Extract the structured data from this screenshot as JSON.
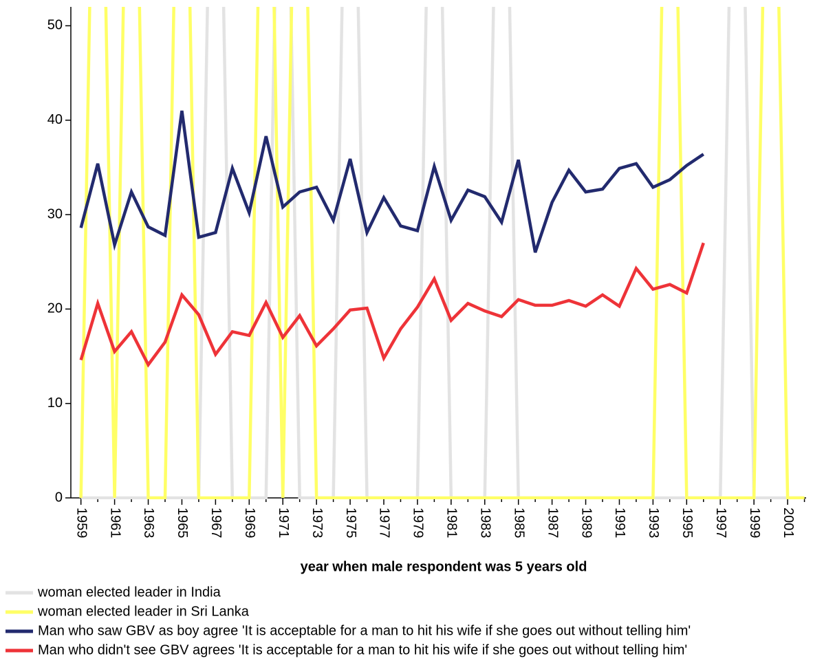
{
  "chart_data": {
    "type": "line",
    "x": [
      1959,
      1960,
      1961,
      1962,
      1963,
      1964,
      1965,
      1966,
      1967,
      1968,
      1969,
      1970,
      1971,
      1972,
      1973,
      1974,
      1975,
      1976,
      1977,
      1978,
      1979,
      1980,
      1981,
      1982,
      1983,
      1984,
      1985,
      1986,
      1987,
      1988,
      1989,
      1990,
      1991,
      1992,
      1993,
      1994,
      1995,
      1996,
      1997,
      1998,
      1999,
      2000,
      2001,
      2002
    ],
    "xlabel": "year when male respondent was 5 years old",
    "xlim": [
      1958.4,
      2002.1
    ],
    "xticks": [
      1959,
      1961,
      1963,
      1965,
      1967,
      1969,
      1971,
      1973,
      1975,
      1977,
      1979,
      1981,
      1983,
      1985,
      1987,
      1989,
      1991,
      1993,
      1995,
      1997,
      1999,
      2001
    ],
    "xminorticks": [
      1960,
      1962,
      1964,
      1966,
      1968,
      1970,
      1972,
      1974,
      1976,
      1978,
      1980,
      1982,
      1984,
      1986,
      1988,
      1990,
      1992,
      1994,
      1996,
      1998,
      2000,
      2002
    ],
    "ylim": [
      0,
      52
    ],
    "yticks": [
      0,
      10,
      20,
      30,
      40,
      50
    ],
    "legend": "bottom-left",
    "series": [
      {
        "name": "woman elected leader in India",
        "color": "#e3e3e3",
        "values": [
          0,
          0,
          0,
          0,
          0,
          0,
          0,
          0,
          100,
          0,
          0,
          0,
          100,
          0,
          0,
          0,
          100,
          0,
          0,
          0,
          0,
          100,
          0,
          0,
          0,
          100,
          0,
          0,
          0,
          0,
          0,
          0,
          0,
          0,
          0,
          0,
          0,
          0,
          0,
          100,
          0,
          0,
          0,
          0
        ]
      },
      {
        "name": "woman elected leader in Sri Lanka",
        "color": "#ffff66",
        "values": [
          0,
          100,
          0,
          100,
          0,
          0,
          100,
          0,
          0,
          0,
          0,
          100,
          0,
          100,
          0,
          0,
          0,
          0,
          0,
          0,
          0,
          0,
          0,
          0,
          0,
          0,
          0,
          0,
          0,
          0,
          0,
          0,
          0,
          0,
          0,
          100,
          0,
          0,
          0,
          0,
          0,
          100,
          0,
          0
        ]
      },
      {
        "name": "Man who saw GBV as boy agree 'It is acceptable for a man to hit his wife if she goes out without telling him'",
        "color": "#222a6e",
        "values": [
          28.6,
          35.4,
          26.8,
          32.4,
          28.7,
          27.8,
          41,
          27.6,
          28.1,
          34.9,
          30.2,
          38.3,
          30.8,
          32.4,
          32.9,
          29.4,
          35.9,
          28.1,
          31.8,
          28.8,
          28.3,
          35.1,
          29.4,
          32.6,
          31.9,
          29.2,
          35.8,
          26,
          31.3,
          34.7,
          32.4,
          32.7,
          34.9,
          35.4,
          32.9,
          33.7,
          35.2,
          36.4,
          null,
          null,
          null,
          null,
          null,
          null
        ]
      },
      {
        "name": "Man who didn't see GBV agrees 'It is acceptable for a man to hit his wife if she goes out without telling him'",
        "color": "#ee3338",
        "values": [
          14.6,
          20.6,
          15.5,
          17.6,
          14.1,
          16.5,
          21.5,
          19.4,
          15.2,
          17.6,
          17.2,
          20.7,
          17,
          19.3,
          16.1,
          17.9,
          19.9,
          20.1,
          14.8,
          17.9,
          20.2,
          23.2,
          18.8,
          20.6,
          19.8,
          19.2,
          21,
          20.4,
          20.4,
          20.9,
          20.3,
          21.5,
          20.3,
          24.3,
          22.1,
          22.6,
          21.7,
          27,
          null,
          null,
          null,
          null,
          null,
          null
        ]
      }
    ]
  }
}
